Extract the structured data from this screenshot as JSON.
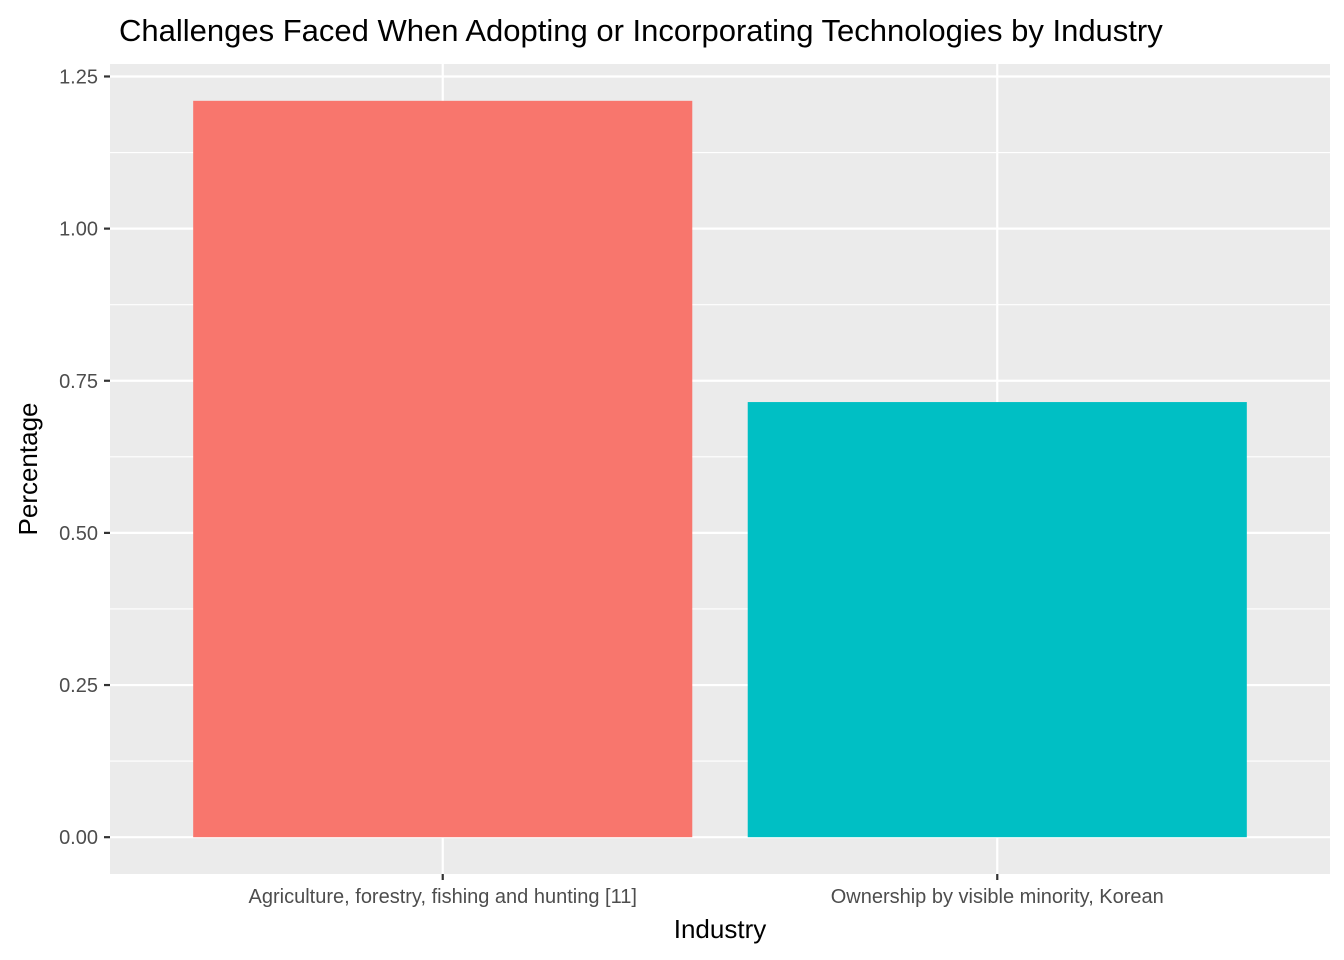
{
  "chart_data": {
    "type": "bar",
    "title": "Challenges Faced When Adopting or Incorporating Technologies by Industry",
    "xlabel": "Industry",
    "ylabel": "Percentage",
    "categories": [
      "Agriculture, forestry, fishing and hunting [11]",
      "Ownership by visible minority, Korean"
    ],
    "values": [
      1.21,
      0.715
    ],
    "colors": [
      "#F8766D",
      "#00BFC4"
    ],
    "ylim": [
      -0.0605,
      1.2705
    ],
    "yticks": [
      0,
      0.25,
      0.5,
      0.75,
      1.0,
      1.25
    ],
    "ytick_labels": [
      "0.00",
      "0.25",
      "0.50",
      "0.75",
      "1.00",
      "1.25"
    ],
    "grid": true,
    "legend": "none",
    "panel_background": "#EBEBEB",
    "gridline_color": "#FFFFFF"
  }
}
